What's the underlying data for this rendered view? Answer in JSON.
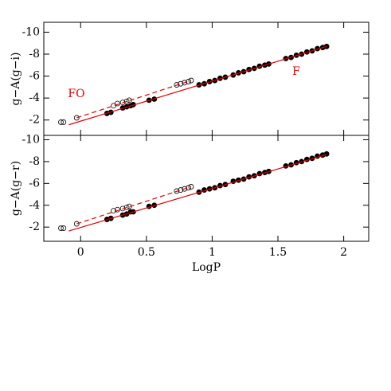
{
  "chart_data": [
    {
      "type": "scatter",
      "ylabel": "g−A(g−i)",
      "xlim": [
        -0.28,
        2.19
      ],
      "ylim": [
        -0.6,
        -10.9
      ],
      "xticks": [
        0,
        0.5,
        1,
        1.5,
        2
      ],
      "yticks": [
        -2,
        -4,
        -6,
        -8,
        -10
      ],
      "series": [
        {
          "name": "FO",
          "color": "#e00000",
          "marker": "open",
          "x": [
            -0.15,
            -0.13,
            -0.03,
            0.25,
            0.28,
            0.32,
            0.35,
            0.37,
            0.73,
            0.76,
            0.79,
            0.82,
            0.84
          ],
          "values": [
            -1.8,
            -1.8,
            -2.2,
            -3.3,
            -3.5,
            -3.6,
            -3.7,
            -3.8,
            -5.2,
            -5.3,
            -5.4,
            -5.5,
            -5.6
          ],
          "fit": {
            "dashed": true,
            "x": [
              -0.03,
              0.84
            ],
            "values": [
              -2.2,
              -5.6
            ]
          }
        },
        {
          "name": "F",
          "color": "#e00000",
          "marker": "filled",
          "x": [
            0.2,
            0.23,
            0.32,
            0.35,
            0.38,
            0.4,
            0.52,
            0.56,
            0.9,
            0.94,
            0.98,
            1.02,
            1.06,
            1.1,
            1.16,
            1.2,
            1.24,
            1.28,
            1.32,
            1.36,
            1.4,
            1.43,
            1.56,
            1.6,
            1.64,
            1.68,
            1.72,
            1.76,
            1.8,
            1.84,
            1.87
          ],
          "values": [
            -2.6,
            -2.7,
            -3.1,
            -3.2,
            -3.3,
            -3.4,
            -3.8,
            -3.9,
            -5.2,
            -5.3,
            -5.5,
            -5.6,
            -5.8,
            -5.9,
            -6.1,
            -6.3,
            -6.4,
            -6.6,
            -6.7,
            -6.9,
            -7.0,
            -7.1,
            -7.6,
            -7.7,
            -7.9,
            -8.0,
            -8.2,
            -8.3,
            -8.5,
            -8.6,
            -8.7
          ],
          "fit": {
            "dashed": false,
            "x": [
              -0.09,
              1.87
            ],
            "values": [
              -1.57,
              -8.7
            ]
          }
        }
      ]
    },
    {
      "type": "scatter",
      "ylabel": "g−A(g−r)",
      "xlabel": "LogP",
      "xlim": [
        -0.28,
        2.19
      ],
      "ylim": [
        -0.7,
        -10.4
      ],
      "xticks": [
        0,
        0.5,
        1,
        1.5,
        2
      ],
      "yticks": [
        -2,
        -4,
        -6,
        -8,
        -10
      ],
      "series": [
        {
          "color": "#e00000",
          "marker": "open",
          "x": [
            -0.15,
            -0.13,
            -0.03,
            0.25,
            0.28,
            0.32,
            0.35,
            0.37,
            0.73,
            0.76,
            0.79,
            0.82,
            0.84
          ],
          "values": [
            -1.9,
            -1.9,
            -2.3,
            -3.5,
            -3.6,
            -3.7,
            -3.8,
            -3.9,
            -5.3,
            -5.4,
            -5.5,
            -5.6,
            -5.7
          ],
          "fit": {
            "dashed": true,
            "x": [
              -0.03,
              0.84
            ],
            "values": [
              -2.3,
              -5.7
            ]
          }
        },
        {
          "color": "#e00000",
          "marker": "filled",
          "x": [
            0.2,
            0.23,
            0.32,
            0.35,
            0.38,
            0.4,
            0.52,
            0.56,
            0.9,
            0.94,
            0.98,
            1.02,
            1.06,
            1.1,
            1.16,
            1.2,
            1.24,
            1.28,
            1.32,
            1.36,
            1.4,
            1.43,
            1.56,
            1.6,
            1.64,
            1.68,
            1.72,
            1.76,
            1.8,
            1.84,
            1.87
          ],
          "values": [
            -2.7,
            -2.8,
            -3.1,
            -3.2,
            -3.4,
            -3.4,
            -3.9,
            -4.0,
            -5.2,
            -5.4,
            -5.5,
            -5.6,
            -5.8,
            -5.9,
            -6.2,
            -6.3,
            -6.4,
            -6.6,
            -6.7,
            -6.9,
            -7.0,
            -7.1,
            -7.6,
            -7.7,
            -7.9,
            -8.0,
            -8.2,
            -8.3,
            -8.5,
            -8.6,
            -8.7
          ],
          "fit": {
            "dashed": false,
            "x": [
              -0.09,
              1.87
            ],
            "values": [
              -1.64,
              -8.65
            ]
          }
        }
      ]
    }
  ]
}
